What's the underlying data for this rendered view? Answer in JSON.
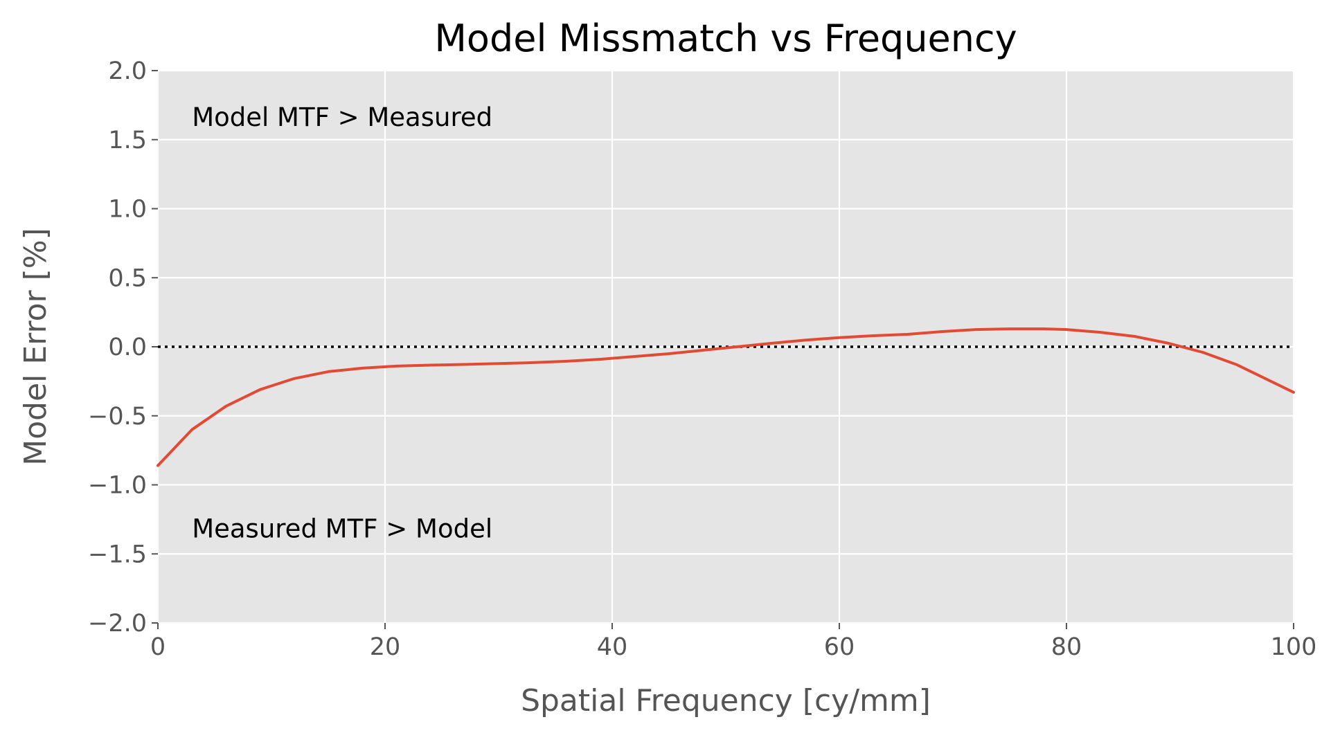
{
  "chart_data": {
    "type": "line",
    "title": "Model Missmatch vs Frequency",
    "xlabel": "Spatial Frequency [cy/mm]",
    "ylabel": "Model Error [%]",
    "xlim": [
      0,
      100
    ],
    "ylim": [
      -2.0,
      2.0
    ],
    "grid": true,
    "style": "ggplot",
    "x_ticks": [
      0,
      20,
      40,
      60,
      80,
      100
    ],
    "x_tick_labels": [
      "0",
      "20",
      "40",
      "60",
      "80",
      "100"
    ],
    "y_ticks": [
      -2.0,
      -1.5,
      -1.0,
      -0.5,
      0.0,
      0.5,
      1.0,
      1.5,
      2.0
    ],
    "y_tick_labels": [
      "−2.0",
      "−1.5",
      "−1.0",
      "−0.5",
      "0.0",
      "0.5",
      "1.0",
      "1.5",
      "2.0"
    ],
    "reference_line": {
      "y": 0.0,
      "style": "dotted",
      "color": "#000000"
    },
    "annotations": [
      {
        "text": "Model MTF > Measured",
        "x": 3,
        "y": 1.6
      },
      {
        "text": "Measured MTF > Model",
        "x": 3,
        "y": -1.38
      }
    ],
    "series": [
      {
        "color": "#E24A33",
        "x": [
          0,
          3,
          6,
          9,
          12,
          15,
          18,
          21,
          24,
          27,
          30,
          33,
          36,
          39,
          42,
          45,
          48,
          51,
          54,
          57,
          60,
          63,
          66,
          69,
          72,
          75,
          78,
          80,
          83,
          86,
          89,
          92,
          95,
          100
        ],
        "y": [
          -0.86,
          -0.6,
          -0.43,
          -0.31,
          -0.23,
          -0.18,
          -0.155,
          -0.14,
          -0.133,
          -0.128,
          -0.122,
          -0.115,
          -0.105,
          -0.09,
          -0.07,
          -0.05,
          -0.025,
          0.0,
          0.025,
          0.048,
          0.066,
          0.08,
          0.09,
          0.11,
          0.125,
          0.13,
          0.13,
          0.125,
          0.105,
          0.075,
          0.025,
          -0.04,
          -0.13,
          -0.33
        ]
      }
    ]
  }
}
